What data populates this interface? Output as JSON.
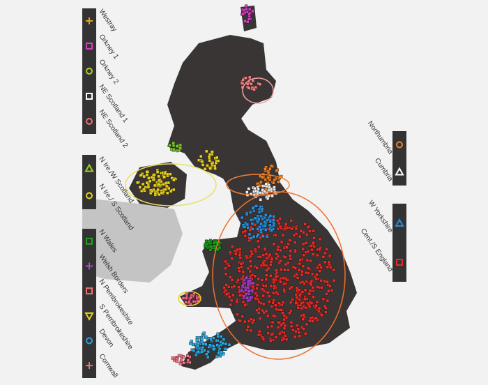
{
  "legends": [
    {
      "entries": [
        {
          "label": "Westray"
        },
        {
          "label": "Orkney 1"
        },
        {
          "label": "Orkney 2"
        },
        {
          "label": "NE Scotland 1"
        },
        {
          "label": "NE Scotland 2"
        }
      ]
    },
    {
      "entries": [
        {
          "label": "N Ire./W Scotland"
        },
        {
          "label": "N Ire./ S Scotland"
        }
      ]
    },
    {
      "entries": [
        {
          "label": "N Wales"
        },
        {
          "label": "Welsh Borders"
        },
        {
          "label": "N Pembrokeshire"
        },
        {
          "label": "S Pembrokeshire"
        },
        {
          "label": "Devon"
        },
        {
          "label": "Cornwall"
        }
      ]
    },
    {
      "entries": [
        {
          "label": "Northumbria"
        },
        {
          "label": "Cumbria"
        }
      ]
    },
    {
      "entries": [
        {
          "label": "W Yorkshire"
        },
        {
          "label": "Cent./S England"
        }
      ]
    }
  ]
}
